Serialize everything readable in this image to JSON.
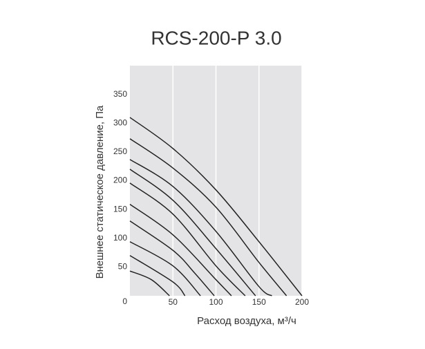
{
  "chart_data": {
    "type": "line",
    "title": "RCS-200-P 3.0",
    "x_label": "Расход воздуха, м³/ч",
    "y_label": "Внешнее статическое давление, Па",
    "xlim": [
      0,
      200
    ],
    "ylim": [
      0,
      400
    ],
    "xticks": [
      50,
      100,
      150,
      200
    ],
    "yticks": [
      0,
      50,
      100,
      150,
      200,
      250,
      300,
      350
    ],
    "grid": true,
    "background": "#e4e4e6",
    "grid_color": "#ffffff",
    "series": [
      {
        "color": "#222222",
        "x": [
          0,
          50,
          100,
          150,
          200
        ],
        "values": [
          310,
          256,
          184,
          94,
          0
        ]
      },
      {
        "color": "#222222",
        "x": [
          0,
          50,
          100,
          150,
          182
        ],
        "values": [
          273,
          222,
          154,
          58,
          0
        ]
      },
      {
        "color": "#222222",
        "x": [
          0,
          50,
          100,
          150,
          165
        ],
        "values": [
          237,
          190,
          112,
          16,
          0
        ]
      },
      {
        "color": "#222222",
        "x": [
          0,
          50,
          100,
          146
        ],
        "values": [
          220,
          166,
          82,
          0
        ]
      },
      {
        "color": "#222222",
        "x": [
          0,
          50,
          100,
          134
        ],
        "values": [
          196,
          142,
          52,
          0
        ]
      },
      {
        "color": "#222222",
        "x": [
          0,
          50,
          100,
          118
        ],
        "values": [
          159,
          106,
          28,
          0
        ]
      },
      {
        "color": "#222222",
        "x": [
          0,
          50,
          75,
          98
        ],
        "values": [
          130,
          79,
          40,
          0
        ]
      },
      {
        "color": "#222222",
        "x": [
          0,
          50,
          82
        ],
        "values": [
          94,
          52,
          0
        ]
      },
      {
        "color": "#222222",
        "x": [
          0,
          50,
          64
        ],
        "values": [
          70,
          24,
          0
        ]
      },
      {
        "color": "#222222",
        "x": [
          0,
          25,
          46
        ],
        "values": [
          43,
          28,
          0
        ]
      }
    ]
  }
}
